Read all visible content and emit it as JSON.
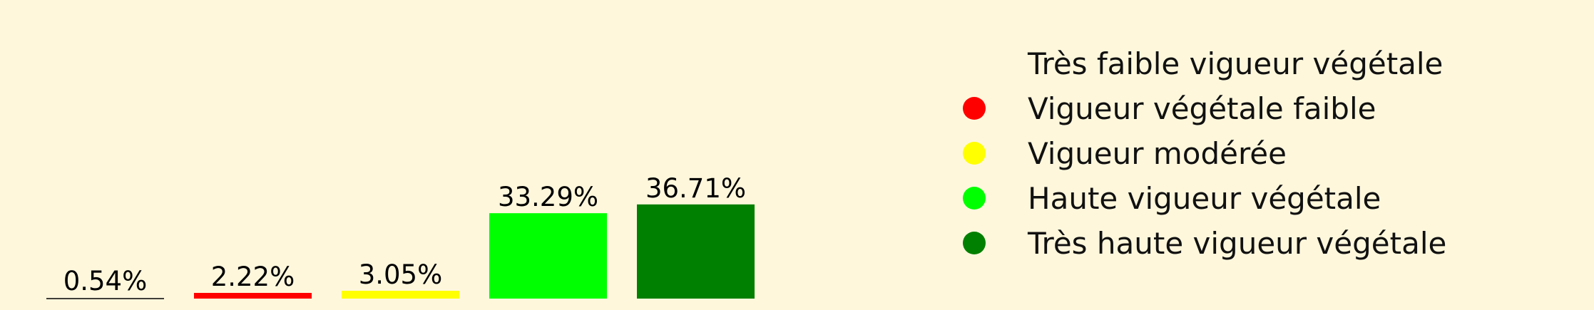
{
  "chart_data": {
    "type": "bar",
    "categories": [
      "Très faible vigueur végétale",
      "Vigueur végétale faible",
      "Vigueur modérée",
      "Haute vigueur végétale",
      "Très haute vigueur végétale"
    ],
    "values": [
      0.54,
      2.22,
      3.05,
      33.29,
      36.71
    ],
    "value_labels": [
      "0.54%",
      "2.22%",
      "3.05%",
      "33.29%",
      "36.71%"
    ],
    "colors": [
      "#fef7dc",
      "#ff0000",
      "#ffff00",
      "#00ff00",
      "#008000"
    ],
    "legend_position": "right",
    "grid": false
  }
}
